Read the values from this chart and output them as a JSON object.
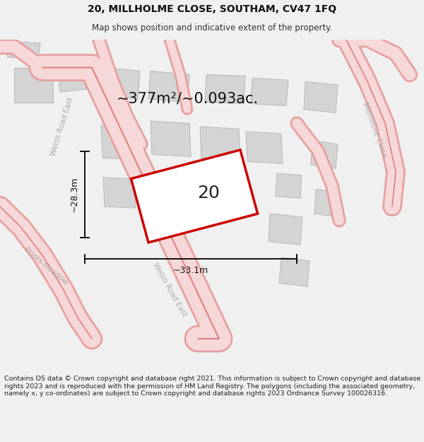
{
  "title": "20, MILLHOLME CLOSE, SOUTHAM, CV47 1FQ",
  "subtitle": "Map shows position and indicative extent of the property.",
  "area_text": "~377m²/~0.093ac.",
  "plot_number": "20",
  "dim_width": "~33.1m",
  "dim_height": "~28.3m",
  "footer": "Contains OS data © Crown copyright and database right 2021. This information is subject to Crown copyright and database rights 2023 and is reproduced with the permission of HM Land Registry. The polygons (including the associated geometry, namely x, y co-ordinates) are subject to Crown copyright and database rights 2023 Ordnance Survey 100026316.",
  "bg_color": "#f0f0f0",
  "map_bg": "#f0f0f0",
  "road_fill": "#f7d8d8",
  "road_edge": "#e8a0a0",
  "road_center": "#e08080",
  "building_color": "#d4d4d4",
  "building_edge": "#b8b8b8",
  "plot_fill": "#ffffff",
  "plot_edge": "#cc0000",
  "dim_color": "#111111",
  "road_label_color": "#aaaaaa",
  "title_fontsize": 10,
  "subtitle_fontsize": 8.5,
  "area_fontsize": 15,
  "plot_num_fontsize": 18,
  "dim_fontsize": 9,
  "road_label_fontsize": 7.5,
  "footer_fontsize": 6.8
}
